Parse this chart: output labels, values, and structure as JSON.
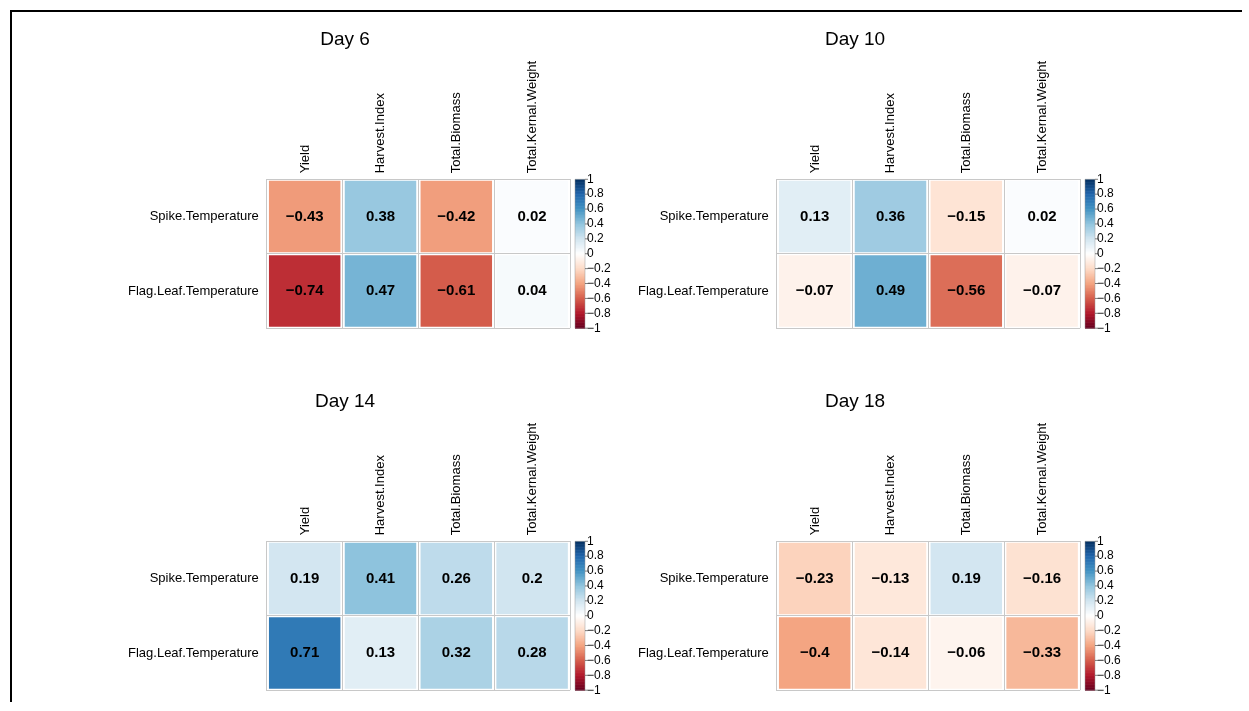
{
  "chart_data": [
    {
      "type": "heatmap",
      "title": "Day 6",
      "categories": [
        "Yield",
        "Harvest.Index",
        "Total.Biomass",
        "Total.Kernal.Weight"
      ],
      "y_categories": [
        "Spike.Temperature",
        "Flag.Leaf.Temperature"
      ],
      "cells": [
        [
          -0.43,
          0.38,
          -0.42,
          0.02
        ],
        [
          -0.74,
          0.47,
          -0.61,
          0.04
        ]
      ],
      "data_labels": true,
      "clim": [
        -1,
        1
      ],
      "cticks": [
        -1,
        -0.8,
        -0.6,
        -0.4,
        -0.2,
        0,
        0.2,
        0.4,
        0.6,
        0.8,
        1
      ],
      "grid": true
    },
    {
      "type": "heatmap",
      "title": "Day 10",
      "categories": [
        "Yield",
        "Harvest.Index",
        "Total.Biomass",
        "Total.Kernal.Weight"
      ],
      "y_categories": [
        "Spike.Temperature",
        "Flag.Leaf.Temperature"
      ],
      "cells": [
        [
          0.13,
          0.36,
          -0.15,
          0.02
        ],
        [
          -0.07,
          0.49,
          -0.56,
          -0.07
        ]
      ],
      "data_labels": true,
      "clim": [
        -1,
        1
      ],
      "cticks": [
        -1,
        -0.8,
        -0.6,
        -0.4,
        -0.2,
        0,
        0.2,
        0.4,
        0.6,
        0.8,
        1
      ],
      "grid": true
    },
    {
      "type": "heatmap",
      "title": "Day 14",
      "categories": [
        "Yield",
        "Harvest.Index",
        "Total.Biomass",
        "Total.Kernal.Weight"
      ],
      "y_categories": [
        "Spike.Temperature",
        "Flag.Leaf.Temperature"
      ],
      "cells": [
        [
          0.19,
          0.41,
          0.26,
          0.2
        ],
        [
          0.71,
          0.13,
          0.32,
          0.28
        ]
      ],
      "data_labels": true,
      "clim": [
        -1,
        1
      ],
      "cticks": [
        -1,
        -0.8,
        -0.6,
        -0.4,
        -0.2,
        0,
        0.2,
        0.4,
        0.6,
        0.8,
        1
      ],
      "grid": true
    },
    {
      "type": "heatmap",
      "title": "Day 18",
      "categories": [
        "Yield",
        "Harvest.Index",
        "Total.Biomass",
        "Total.Kernal.Weight"
      ],
      "y_categories": [
        "Spike.Temperature",
        "Flag.Leaf.Temperature"
      ],
      "cells": [
        [
          -0.23,
          -0.13,
          0.19,
          -0.16
        ],
        [
          -0.4,
          -0.14,
          -0.06,
          -0.33
        ]
      ],
      "data_labels": true,
      "clim": [
        -1,
        1
      ],
      "cticks": [
        -1,
        -0.8,
        -0.6,
        -0.4,
        -0.2,
        0,
        0.2,
        0.4,
        0.6,
        0.8,
        1
      ],
      "grid": true
    }
  ]
}
